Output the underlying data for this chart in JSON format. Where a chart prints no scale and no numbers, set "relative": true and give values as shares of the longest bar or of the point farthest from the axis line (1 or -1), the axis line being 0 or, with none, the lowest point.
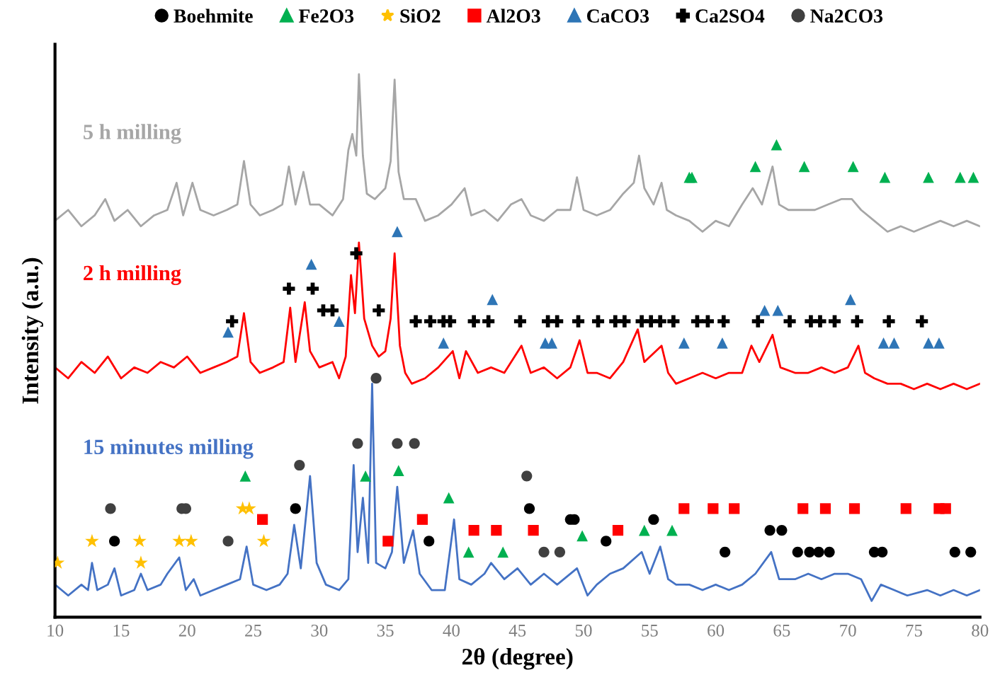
{
  "chart_data": {
    "type": "line",
    "relative": true,
    "xlabel": "2θ (degree)",
    "ylabel": "Intensity (a.u.)",
    "xlim": [
      10,
      80
    ],
    "xticks": [
      10,
      15,
      20,
      25,
      30,
      35,
      40,
      45,
      50,
      55,
      60,
      65,
      70,
      75,
      80
    ],
    "legend": "top",
    "grid": false,
    "marker": "none",
    "line_style": "solid",
    "series": [
      {
        "name": "5 h milling",
        "color": "#a6a6a6",
        "x": [
          10,
          11,
          12,
          13,
          13.8,
          14.5,
          15.5,
          16.5,
          17.5,
          18.5,
          19.2,
          19.7,
          20.4,
          21,
          22,
          23,
          23.8,
          24.3,
          24.8,
          25.5,
          26.5,
          27.2,
          27.7,
          28.2,
          28.8,
          29.3,
          30,
          31,
          31.8,
          32.2,
          32.5,
          32.8,
          33.0,
          33.3,
          33.6,
          34.2,
          35,
          35.4,
          35.7,
          36.0,
          36.4,
          37.3,
          38,
          39,
          40,
          41,
          41.5,
          42.5,
          43.5,
          44.5,
          45.3,
          46,
          47,
          48,
          49,
          49.5,
          50,
          51,
          52,
          53,
          53.8,
          54.2,
          54.6,
          55.3,
          55.9,
          56.3,
          57,
          58,
          59,
          60,
          61,
          62,
          62.8,
          63.5,
          64.3,
          64.8,
          65.5,
          66.5,
          67.5,
          68.5,
          69.5,
          70.3,
          71,
          72,
          73,
          74,
          75,
          76,
          77,
          78,
          79,
          80
        ],
        "values": [
          0.73,
          0.75,
          0.72,
          0.74,
          0.77,
          0.73,
          0.75,
          0.72,
          0.74,
          0.75,
          0.8,
          0.74,
          0.8,
          0.75,
          0.74,
          0.75,
          0.76,
          0.84,
          0.76,
          0.74,
          0.75,
          0.76,
          0.83,
          0.76,
          0.82,
          0.76,
          0.76,
          0.74,
          0.77,
          0.86,
          0.89,
          0.85,
          1.0,
          0.85,
          0.78,
          0.77,
          0.79,
          0.84,
          0.99,
          0.82,
          0.77,
          0.77,
          0.73,
          0.74,
          0.76,
          0.79,
          0.74,
          0.75,
          0.73,
          0.76,
          0.77,
          0.74,
          0.73,
          0.75,
          0.75,
          0.81,
          0.75,
          0.74,
          0.75,
          0.78,
          0.8,
          0.85,
          0.79,
          0.76,
          0.8,
          0.75,
          0.74,
          0.73,
          0.71,
          0.73,
          0.72,
          0.76,
          0.79,
          0.76,
          0.83,
          0.76,
          0.75,
          0.75,
          0.75,
          0.76,
          0.77,
          0.77,
          0.75,
          0.73,
          0.71,
          0.72,
          0.71,
          0.72,
          0.73,
          0.72,
          0.73,
          0.72
        ]
      },
      {
        "name": "2 h milling",
        "color": "#ff0000",
        "x": [
          10,
          11,
          12,
          13,
          14,
          15,
          16,
          17,
          18,
          19,
          20,
          21,
          22,
          23,
          23.8,
          24.3,
          24.8,
          25.5,
          26.5,
          27.3,
          27.8,
          28.2,
          28.9,
          29.3,
          30,
          31,
          31.5,
          32.0,
          32.4,
          32.7,
          33.0,
          33.4,
          34,
          34.5,
          35,
          35.4,
          35.7,
          36.1,
          36.5,
          37,
          38,
          39,
          40.1,
          40.6,
          41.1,
          42,
          43,
          44,
          45.3,
          46,
          47,
          48,
          49,
          49.7,
          50.3,
          51,
          52,
          53,
          54.1,
          54.6,
          55.9,
          56.4,
          57,
          58,
          59,
          60,
          61,
          62,
          62.7,
          63.3,
          64.3,
          64.9,
          66,
          67,
          68,
          69,
          70,
          70.8,
          71.3,
          72,
          73,
          74,
          75,
          76,
          77,
          78,
          79,
          80
        ],
        "values": [
          0.46,
          0.44,
          0.47,
          0.45,
          0.48,
          0.44,
          0.46,
          0.45,
          0.47,
          0.46,
          0.48,
          0.45,
          0.46,
          0.47,
          0.48,
          0.56,
          0.47,
          0.45,
          0.46,
          0.47,
          0.57,
          0.47,
          0.58,
          0.49,
          0.46,
          0.47,
          0.44,
          0.48,
          0.63,
          0.56,
          0.69,
          0.55,
          0.5,
          0.48,
          0.49,
          0.55,
          0.67,
          0.5,
          0.45,
          0.43,
          0.44,
          0.46,
          0.49,
          0.44,
          0.49,
          0.45,
          0.46,
          0.45,
          0.5,
          0.45,
          0.46,
          0.44,
          0.46,
          0.51,
          0.45,
          0.45,
          0.44,
          0.47,
          0.53,
          0.47,
          0.5,
          0.45,
          0.43,
          0.44,
          0.45,
          0.44,
          0.45,
          0.45,
          0.5,
          0.47,
          0.52,
          0.46,
          0.45,
          0.45,
          0.46,
          0.45,
          0.46,
          0.5,
          0.45,
          0.44,
          0.43,
          0.43,
          0.42,
          0.43,
          0.42,
          0.43,
          0.42,
          0.43
        ]
      },
      {
        "name": "15 minutes milling",
        "color": "#4472c4",
        "x": [
          10,
          11,
          12,
          12.5,
          12.8,
          13.2,
          14,
          14.5,
          15,
          16,
          16.5,
          17,
          18,
          18.5,
          19.4,
          19.9,
          20.5,
          21,
          22,
          23,
          24,
          24.5,
          25,
          26,
          27,
          27.6,
          28.1,
          28.6,
          29.3,
          29.8,
          30.5,
          31.5,
          32.2,
          32.6,
          32.9,
          33.3,
          33.7,
          34.0,
          34.3,
          35,
          35.5,
          35.9,
          36.4,
          37.1,
          37.6,
          38.5,
          39.5,
          40.2,
          40.6,
          41.5,
          42.5,
          43,
          44,
          45,
          46,
          47,
          48,
          49.5,
          50.3,
          51,
          52,
          53,
          54.4,
          55,
          55.8,
          56.4,
          57,
          58,
          59,
          60,
          61,
          62,
          63,
          64.2,
          64.8,
          66,
          67,
          68,
          69,
          70,
          71,
          71.8,
          72.5,
          73.5,
          74.5,
          76,
          77,
          78,
          79,
          80
        ],
        "values": [
          0.06,
          0.04,
          0.06,
          0.05,
          0.1,
          0.05,
          0.06,
          0.09,
          0.04,
          0.05,
          0.08,
          0.05,
          0.06,
          0.08,
          0.11,
          0.05,
          0.07,
          0.04,
          0.05,
          0.06,
          0.07,
          0.13,
          0.06,
          0.05,
          0.06,
          0.08,
          0.17,
          0.09,
          0.26,
          0.1,
          0.06,
          0.05,
          0.07,
          0.28,
          0.12,
          0.22,
          0.1,
          0.43,
          0.1,
          0.09,
          0.12,
          0.24,
          0.1,
          0.16,
          0.08,
          0.05,
          0.05,
          0.18,
          0.07,
          0.06,
          0.08,
          0.1,
          0.07,
          0.09,
          0.06,
          0.08,
          0.06,
          0.09,
          0.04,
          0.06,
          0.08,
          0.09,
          0.12,
          0.08,
          0.13,
          0.07,
          0.06,
          0.06,
          0.05,
          0.06,
          0.05,
          0.06,
          0.08,
          0.12,
          0.07,
          0.07,
          0.08,
          0.07,
          0.08,
          0.08,
          0.07,
          0.03,
          0.06,
          0.05,
          0.04,
          0.05,
          0.04,
          0.05,
          0.04,
          0.05
        ]
      },
      {
        "name": "Boehmite",
        "type": "scatter",
        "marker": "circle",
        "color": "#000000",
        "x": [
          14.5,
          28.2,
          38.3,
          45.9,
          49.0,
          49.3,
          51.7,
          55.3,
          60.7,
          64.1,
          65.0,
          66.2,
          67.1,
          67.8,
          68.6,
          72.0,
          72.6,
          78.1,
          79.3
        ],
        "values": [
          0.14,
          0.2,
          0.14,
          0.2,
          0.18,
          0.18,
          0.14,
          0.18,
          0.12,
          0.16,
          0.16,
          0.12,
          0.12,
          0.12,
          0.12,
          0.12,
          0.12,
          0.12,
          0.12
        ]
      },
      {
        "name": "Fe2O3",
        "type": "scatter",
        "marker": "triangle",
        "color": "#00b050",
        "x": [
          58.0,
          58.2,
          63.0,
          64.6,
          66.7,
          70.4,
          72.8,
          76.1,
          78.5,
          79.5,
          24.4,
          33.5,
          36.0,
          39.8,
          41.3,
          43.9,
          49.9,
          54.6,
          56.7
        ],
        "values": [
          0.81,
          0.81,
          0.83,
          0.87,
          0.83,
          0.83,
          0.81,
          0.81,
          0.81,
          0.81,
          0.26,
          0.26,
          0.27,
          0.22,
          0.12,
          0.12,
          0.15,
          0.16,
          0.16
        ]
      },
      {
        "name": "SiO2",
        "type": "scatter",
        "marker": "star",
        "color": "#ffc000",
        "x": [
          10.2,
          12.8,
          16.4,
          16.5,
          19.4,
          20.3,
          24.2,
          24.7,
          25.8
        ],
        "values": [
          0.1,
          0.14,
          0.14,
          0.1,
          0.14,
          0.14,
          0.2,
          0.2,
          0.14
        ]
      },
      {
        "name": "Al2O3",
        "type": "scatter",
        "marker": "square",
        "color": "#ff0000",
        "x": [
          25.7,
          35.2,
          37.8,
          41.7,
          43.4,
          46.2,
          52.6,
          57.6,
          59.8,
          61.4,
          66.6,
          68.3,
          70.5,
          74.4,
          76.9,
          77.4
        ],
        "values": [
          0.18,
          0.14,
          0.18,
          0.16,
          0.16,
          0.16,
          0.16,
          0.2,
          0.2,
          0.2,
          0.2,
          0.2,
          0.2,
          0.2,
          0.2,
          0.2
        ]
      },
      {
        "name": "CaCO3",
        "type": "scatter",
        "marker": "triangle",
        "color": "#2e75b6",
        "x": [
          23.1,
          29.4,
          31.5,
          35.9,
          39.4,
          43.1,
          47.1,
          47.6,
          57.6,
          60.5,
          63.7,
          64.7,
          70.2,
          72.7,
          73.5,
          76.1,
          76.9
        ],
        "values": [
          0.525,
          0.65,
          0.545,
          0.71,
          0.505,
          0.585,
          0.505,
          0.505,
          0.505,
          0.505,
          0.565,
          0.565,
          0.585,
          0.505,
          0.505,
          0.505,
          0.505
        ]
      },
      {
        "name": "Ca2SO4",
        "type": "scatter",
        "marker": "cross",
        "color": "#000000",
        "x": [
          23.4,
          27.7,
          29.5,
          30.3,
          31.0,
          32.8,
          34.5,
          37.3,
          38.4,
          39.4,
          39.9,
          41.7,
          42.8,
          45.2,
          47.3,
          48.0,
          49.6,
          51.1,
          52.4,
          53.1,
          54.4,
          55.1,
          55.8,
          56.8,
          58.6,
          59.4,
          60.6,
          63.2,
          65.6,
          67.2,
          67.9,
          69.0,
          70.7,
          73.1,
          75.6
        ],
        "values": [
          0.545,
          0.605,
          0.605,
          0.565,
          0.565,
          0.67,
          0.565,
          0.545,
          0.545,
          0.545,
          0.545,
          0.545,
          0.545,
          0.545,
          0.545,
          0.545,
          0.545,
          0.545,
          0.545,
          0.545,
          0.545,
          0.545,
          0.545,
          0.545,
          0.545,
          0.545,
          0.545,
          0.545,
          0.545,
          0.545,
          0.545,
          0.545,
          0.545,
          0.545,
          0.545
        ]
      },
      {
        "name": "Na2CO3",
        "type": "scatter",
        "marker": "circle",
        "color": "#404040",
        "x": [
          14.2,
          19.6,
          19.9,
          23.1,
          28.5,
          32.9,
          34.3,
          35.9,
          37.2,
          45.7,
          47.0,
          48.2
        ],
        "values": [
          0.2,
          0.2,
          0.2,
          0.14,
          0.28,
          0.32,
          0.44,
          0.32,
          0.32,
          0.26,
          0.12,
          0.12
        ]
      }
    ]
  }
}
